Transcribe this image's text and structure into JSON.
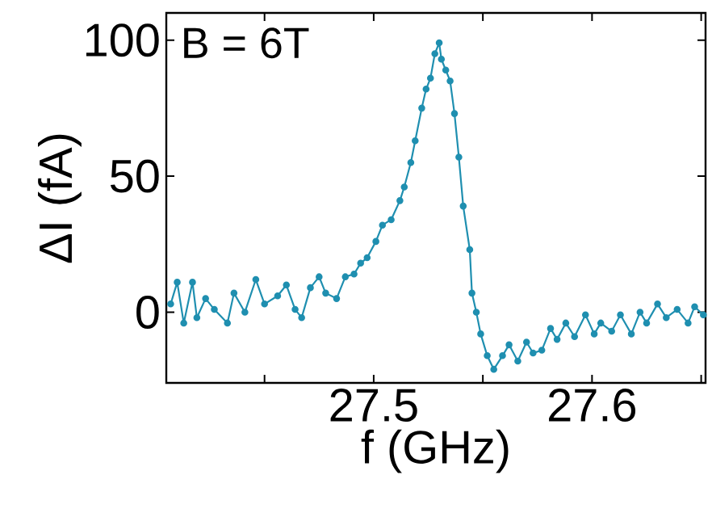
{
  "chart_data": {
    "type": "line",
    "xlabel": "f (GHz)",
    "ylabel": "ΔI (fA)",
    "annotations": [
      "B = 6T"
    ],
    "marker": "circle",
    "line_style": "solid",
    "xlim": [
      27.405,
      27.652
    ],
    "ylim": [
      -26,
      110
    ],
    "xticks": [
      {
        "value": 27.45,
        "label": null
      },
      27.5,
      {
        "value": 27.55,
        "label": null
      },
      27.6,
      {
        "value": 27.65,
        "label": null
      }
    ],
    "yticks": [
      0,
      50,
      100
    ],
    "series": [
      {
        "color": "#1f8fb0",
        "x": [
          27.407,
          27.41,
          27.413,
          27.417,
          27.419,
          27.423,
          27.427,
          27.433,
          27.436,
          27.441,
          27.446,
          27.45,
          27.456,
          27.46,
          27.464,
          27.467,
          27.471,
          27.475,
          27.478,
          27.483,
          27.487,
          27.491,
          27.494,
          27.497,
          27.501,
          27.504,
          27.508,
          27.512,
          27.514,
          27.517,
          27.519,
          27.522,
          27.524,
          27.526,
          27.528,
          27.53,
          27.531,
          27.533,
          27.535,
          27.537,
          27.539,
          27.541,
          27.544,
          27.545,
          27.547,
          27.549,
          27.552,
          27.555,
          27.559,
          27.562,
          27.566,
          27.57,
          27.573,
          27.577,
          27.581,
          27.584,
          27.588,
          27.592,
          27.597,
          27.601,
          27.604,
          27.609,
          27.613,
          27.618,
          27.622,
          27.625,
          27.63,
          27.634,
          27.639,
          27.644,
          27.647,
          27.651
        ],
        "values": [
          3,
          11,
          -4,
          11,
          -2,
          5,
          1,
          -4,
          7,
          0,
          12,
          3,
          6,
          10,
          1,
          -2,
          9,
          13,
          7,
          5,
          13,
          14,
          18,
          20,
          26,
          32,
          34,
          41,
          46,
          55,
          63,
          75,
          82,
          86,
          95,
          99,
          93,
          89,
          85,
          73,
          57,
          39,
          23,
          7,
          0,
          -8,
          -16,
          -21,
          -16,
          -12,
          -18,
          -11,
          -15,
          -14,
          -6,
          -10,
          -4,
          -9,
          -1,
          -8,
          -4,
          -7,
          -1,
          -8,
          0,
          -4,
          3,
          -2,
          1,
          -4,
          2,
          -1
        ]
      }
    ]
  }
}
